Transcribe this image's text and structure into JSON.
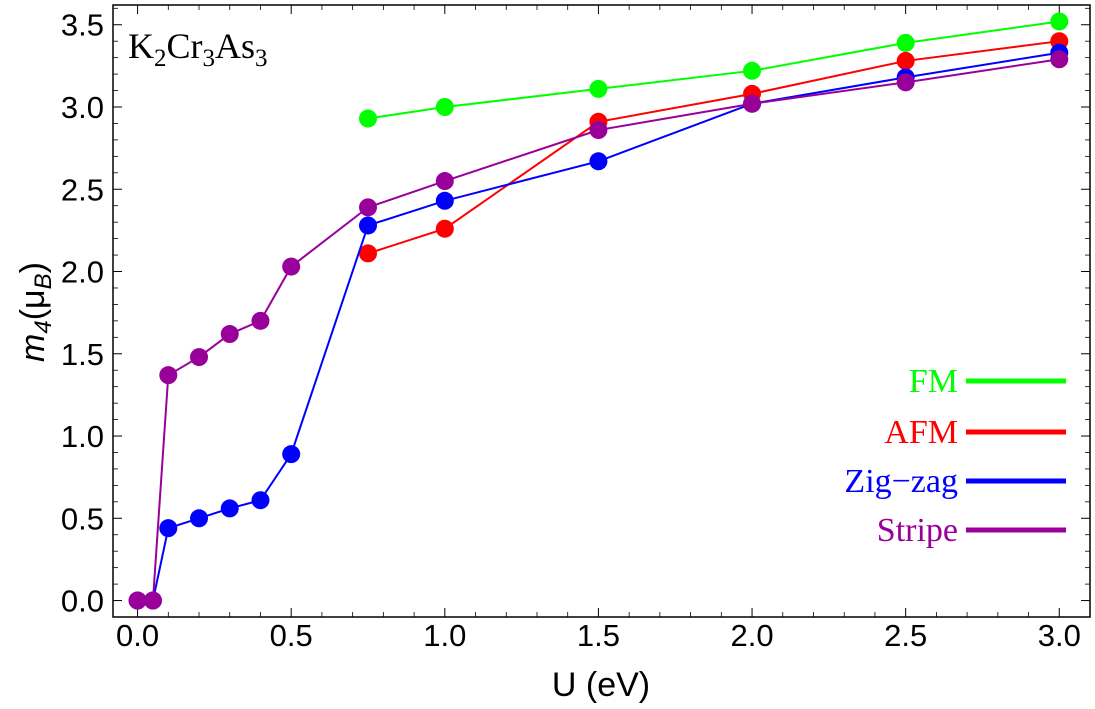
{
  "chart_data": {
    "type": "line",
    "title": {
      "parts": [
        "K",
        "2",
        "Cr",
        "3",
        "As",
        "3"
      ]
    },
    "xlabel": "U (eV)",
    "ylabel": {
      "m": "m",
      "sub": "4",
      "open": "(μ",
      "sub2": "B",
      "close": ")"
    },
    "xlim": [
      -0.08,
      3.1
    ],
    "ylim": [
      -0.1,
      3.62
    ],
    "x_ticks": [
      0.0,
      0.5,
      1.0,
      1.5,
      2.0,
      2.5,
      3.0
    ],
    "x_tick_labels": [
      "0.0",
      "0.5",
      "1.0",
      "1.5",
      "2.0",
      "2.5",
      "3.0"
    ],
    "y_ticks": [
      0.0,
      0.5,
      1.0,
      1.5,
      2.0,
      2.5,
      3.0,
      3.5
    ],
    "y_tick_labels": [
      "0.0",
      "0.5",
      "1.0",
      "1.5",
      "2.0",
      "2.5",
      "3.0",
      "3.5"
    ],
    "legend_position": "bottom-right",
    "series": [
      {
        "name": "FM",
        "color": "#00ff00",
        "x": [
          0.75,
          1.0,
          1.5,
          2.0,
          2.5,
          3.0
        ],
        "y": [
          2.93,
          3.0,
          3.11,
          3.22,
          3.39,
          3.52
        ]
      },
      {
        "name": "AFM",
        "color": "#ff0000",
        "x": [
          0.75,
          1.0,
          1.5,
          2.0,
          2.5,
          3.0
        ],
        "y": [
          2.11,
          2.26,
          2.91,
          3.08,
          3.28,
          3.4
        ]
      },
      {
        "name": "Zig−zag",
        "color": "#0000ff",
        "x": [
          0.0,
          0.05,
          0.1,
          0.2,
          0.3,
          0.4,
          0.5,
          0.75,
          1.0,
          1.5,
          2.0,
          2.5,
          3.0
        ],
        "y": [
          0.0,
          0.0,
          0.44,
          0.5,
          0.56,
          0.61,
          0.89,
          2.28,
          2.43,
          2.67,
          3.02,
          3.18,
          3.33
        ]
      },
      {
        "name": "Stripe",
        "color": "#990099",
        "x": [
          0.0,
          0.05,
          0.1,
          0.2,
          0.3,
          0.4,
          0.5,
          0.75,
          1.0,
          1.5,
          2.0,
          2.5,
          3.0
        ],
        "y": [
          0.0,
          0.0,
          1.37,
          1.48,
          1.62,
          1.7,
          2.03,
          2.39,
          2.55,
          2.86,
          3.02,
          3.15,
          3.29
        ]
      }
    ]
  }
}
